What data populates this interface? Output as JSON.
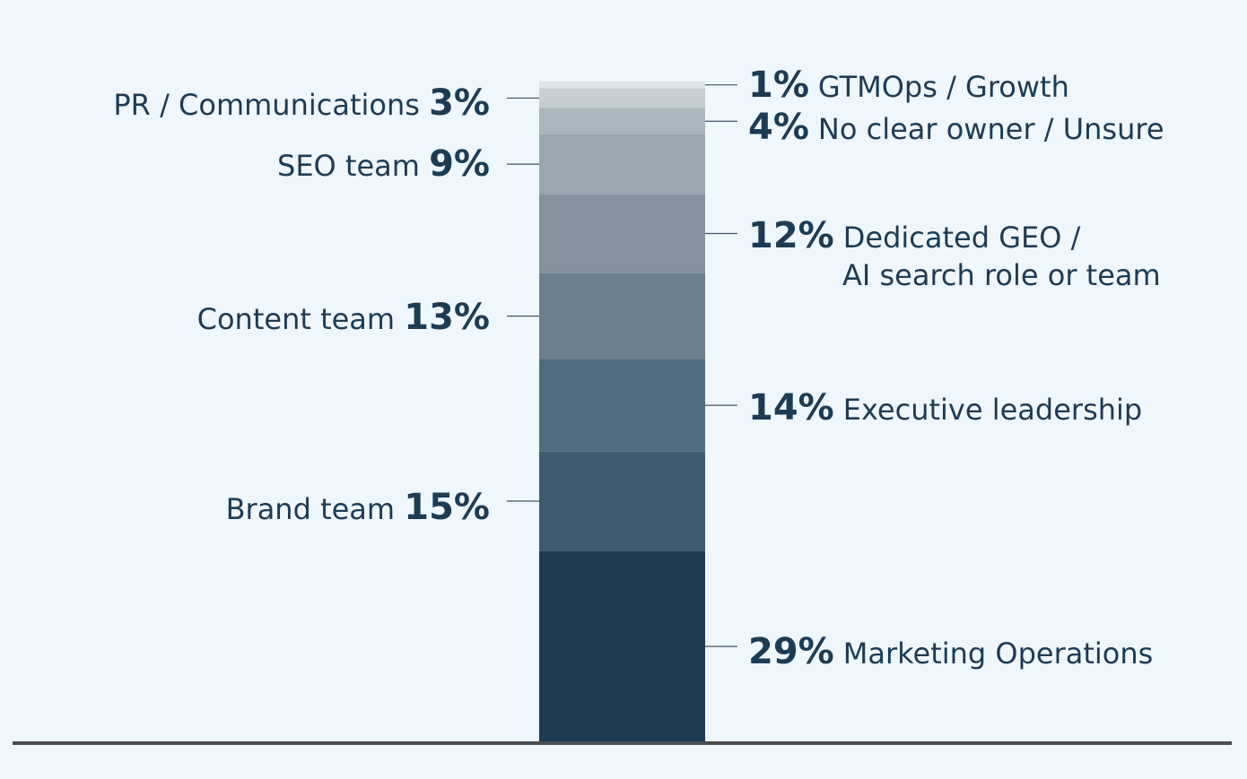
{
  "chart_data": {
    "type": "bar",
    "stacked": true,
    "categories": [
      ""
    ],
    "series": [
      {
        "name": "Marketing Operations",
        "value": 29,
        "label": "29%",
        "side": "right",
        "color": "#1c3b55"
      },
      {
        "name": "Brand team",
        "value": 15,
        "label": "15%",
        "side": "left",
        "color": "#3c5b71"
      },
      {
        "name": "Executive leadership",
        "value": 14,
        "label": "14%",
        "side": "right",
        "color": "#506c80"
      },
      {
        "name": "Content team",
        "value": 13,
        "label": "13%",
        "side": "left",
        "color": "#6b7f8f"
      },
      {
        "name": "Dedicated GEO / AI search role or team",
        "label_lines": [
          "Dedicated GEO /",
          "AI search role or team"
        ],
        "value": 12,
        "label": "12%",
        "side": "right",
        "color": "#82929f"
      },
      {
        "name": "SEO team",
        "value": 9,
        "label": "9%",
        "side": "left",
        "color": "#97a7b0"
      },
      {
        "name": "No clear owner / Unsure",
        "value": 4,
        "label": "4%",
        "side": "right",
        "color": "#a9b6bd"
      },
      {
        "name": "PR / Communications",
        "value": 3,
        "label": "3%",
        "side": "left",
        "color": "#c5ced3"
      },
      {
        "name": "GTMOps / Growth",
        "value": 1,
        "label": "1%",
        "side": "right",
        "color": "#dde3e6"
      }
    ],
    "ylim": [
      0,
      100
    ],
    "grid": false,
    "legend": "none",
    "colors": {
      "background": "#eff7fe",
      "text": "#1d3b55",
      "baseline": "#4a4d52"
    }
  }
}
